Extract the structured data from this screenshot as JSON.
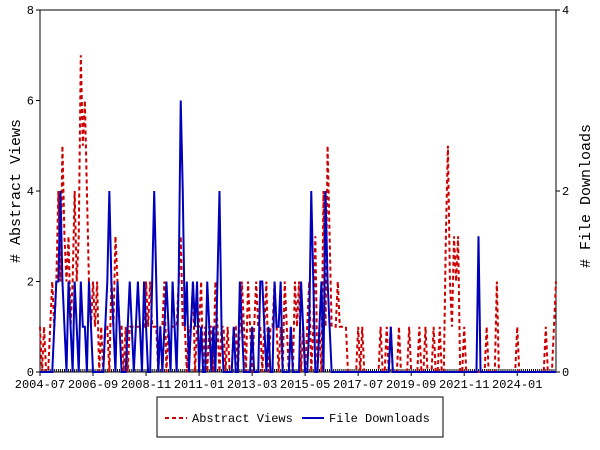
{
  "chart_data": {
    "type": "line",
    "y_label": "# Abstract Views",
    "y2_label": "# File Downloads",
    "x": [
      "2004-07",
      "2004-08",
      "2004-09",
      "2004-10",
      "2004-11",
      "2004-12",
      "2005-01",
      "2005-02",
      "2005-03",
      "2005-04",
      "2005-05",
      "2005-06",
      "2005-07",
      "2005-08",
      "2005-09",
      "2005-10",
      "2005-11",
      "2005-12",
      "2006-01",
      "2006-02",
      "2006-03",
      "2006-04",
      "2006-05",
      "2006-06",
      "2006-07",
      "2006-08",
      "2006-09",
      "2006-10",
      "2006-11",
      "2006-12",
      "2007-01",
      "2007-02",
      "2007-03",
      "2007-04",
      "2007-05",
      "2007-06",
      "2007-07",
      "2007-08",
      "2007-09",
      "2007-10",
      "2007-11",
      "2007-12",
      "2008-01",
      "2008-02",
      "2008-03",
      "2008-04",
      "2008-05",
      "2008-06",
      "2008-07",
      "2008-08",
      "2008-09",
      "2008-10",
      "2008-11",
      "2008-12",
      "2009-01",
      "2009-02",
      "2009-03",
      "2009-04",
      "2009-05",
      "2009-06",
      "2009-07",
      "2009-08",
      "2009-09",
      "2009-10",
      "2009-11",
      "2009-12",
      "2010-01",
      "2010-02",
      "2010-03",
      "2010-04",
      "2010-05",
      "2010-06",
      "2010-07",
      "2010-08",
      "2010-09",
      "2010-10",
      "2010-11",
      "2010-12",
      "2011-01",
      "2011-02",
      "2011-03",
      "2011-04",
      "2011-05",
      "2011-06",
      "2011-07",
      "2011-08",
      "2011-09",
      "2011-10",
      "2011-11",
      "2011-12",
      "2012-01",
      "2012-02",
      "2012-03",
      "2012-04",
      "2012-05",
      "2012-06",
      "2012-07",
      "2012-08",
      "2012-09",
      "2012-10",
      "2012-11",
      "2012-12",
      "2013-01",
      "2013-02",
      "2013-03",
      "2013-04",
      "2013-05",
      "2013-06",
      "2013-07",
      "2013-08",
      "2013-09",
      "2013-10",
      "2013-11",
      "2013-12",
      "2014-01",
      "2014-02",
      "2014-03",
      "2014-04",
      "2014-05",
      "2014-06",
      "2014-07",
      "2014-08",
      "2014-09",
      "2014-10",
      "2014-11",
      "2014-12",
      "2015-01",
      "2015-02",
      "2015-03",
      "2015-04",
      "2015-05",
      "2015-06",
      "2015-07",
      "2015-08",
      "2015-09",
      "2015-10",
      "2015-11",
      "2015-12",
      "2016-01",
      "2016-02",
      "2016-03",
      "2016-04",
      "2016-05",
      "2016-06",
      "2016-07",
      "2016-08",
      "2016-09",
      "2016-10",
      "2016-11",
      "2016-12",
      "2017-01",
      "2017-02",
      "2017-03",
      "2017-04",
      "2017-05",
      "2017-06",
      "2017-07",
      "2017-08",
      "2017-09",
      "2017-10",
      "2017-11",
      "2017-12",
      "2018-01",
      "2018-02",
      "2018-03",
      "2018-04",
      "2018-05",
      "2018-06",
      "2018-07",
      "2018-08",
      "2018-09",
      "2018-10",
      "2018-11",
      "2018-12",
      "2019-01",
      "2019-02",
      "2019-03",
      "2019-04",
      "2019-05",
      "2019-06",
      "2019-07",
      "2019-08",
      "2019-09",
      "2019-10",
      "2019-11",
      "2019-12",
      "2020-01",
      "2020-02",
      "2020-03",
      "2020-04",
      "2020-05",
      "2020-06",
      "2020-07",
      "2020-08",
      "2020-09",
      "2020-10",
      "2020-11",
      "2020-12",
      "2021-01",
      "2021-02",
      "2021-03",
      "2021-04",
      "2021-05",
      "2021-06",
      "2021-07",
      "2021-08",
      "2021-09",
      "2021-10",
      "2021-11",
      "2021-12",
      "2022-01",
      "2022-02",
      "2022-03",
      "2022-04",
      "2022-05",
      "2022-06",
      "2022-07",
      "2022-08",
      "2022-09",
      "2022-10",
      "2022-11",
      "2022-12",
      "2023-01",
      "2023-02",
      "2023-03",
      "2023-04",
      "2023-05",
      "2023-06",
      "2023-07",
      "2023-08",
      "2023-09",
      "2023-10",
      "2023-11",
      "2023-12",
      "2024-01",
      "2024-02",
      "2024-03",
      "2024-04",
      "2024-05",
      "2024-06",
      "2024-07",
      "2024-08",
      "2024-09",
      "2024-10",
      "2024-11",
      "2024-12",
      "2025-01",
      "2025-02",
      "2025-03",
      "2025-04",
      "2025-05",
      "2025-06",
      "2025-07",
      "2025-08"
    ],
    "xticks": [
      "2004-07",
      "2006-09",
      "2008-11",
      "2011-01",
      "2013-03",
      "2015-05",
      "2017-07",
      "2019-09",
      "2021-11",
      "2024-01"
    ],
    "ylim": [
      0,
      8
    ],
    "yticks": [
      0,
      2,
      4,
      6,
      8
    ],
    "y2lim": [
      0,
      4
    ],
    "y2ticks": [
      0,
      2,
      4
    ],
    "legend": "bottom",
    "series": [
      {
        "name": "Abstract Views",
        "color": "#cc0000",
        "style": "dashed",
        "values": [
          1,
          0,
          1,
          0,
          0,
          1,
          2,
          1,
          2,
          4,
          2,
          5,
          3,
          2,
          3,
          1,
          2,
          4,
          2,
          3,
          7,
          5,
          6,
          4,
          2,
          1,
          2,
          1,
          2,
          0,
          1,
          0,
          1,
          1,
          0,
          2,
          1,
          3,
          2,
          1,
          1,
          0,
          1,
          0,
          1,
          1,
          1,
          1,
          1,
          1,
          1,
          1,
          2,
          1,
          2,
          1,
          1,
          1,
          0,
          1,
          1,
          2,
          0,
          1,
          1,
          1,
          1,
          1,
          2,
          3,
          1,
          1,
          0,
          1,
          1,
          2,
          0,
          1,
          1,
          2,
          0,
          1,
          0,
          1,
          1,
          0,
          2,
          1,
          0,
          1,
          1,
          0,
          1,
          0,
          0,
          1,
          1,
          0,
          1,
          2,
          1,
          0,
          2,
          1,
          0,
          1,
          2,
          1,
          1,
          0,
          1,
          2,
          0,
          1,
          1,
          2,
          1,
          0,
          1,
          0,
          2,
          1,
          0,
          1,
          0,
          2,
          1,
          2,
          0,
          1,
          0,
          1,
          2,
          0,
          1,
          3,
          0,
          1,
          0,
          4,
          1,
          5,
          3,
          1,
          1,
          1,
          2,
          1,
          1,
          1,
          1,
          0,
          0,
          0,
          0,
          0,
          1,
          0,
          1,
          0,
          0,
          0,
          0,
          0,
          0,
          0,
          0,
          1,
          0,
          0,
          1,
          0,
          1,
          0,
          0,
          0,
          1,
          0,
          0,
          0,
          0,
          1,
          0,
          0,
          0,
          0,
          1,
          0,
          0,
          1,
          0,
          0,
          0,
          1,
          0,
          0,
          1,
          0,
          0,
          3,
          5,
          2,
          1,
          3,
          2,
          3,
          0,
          0,
          1,
          0,
          0,
          0,
          0,
          0,
          0,
          0,
          0,
          0,
          0,
          1,
          0,
          0,
          0,
          0,
          2,
          0,
          0,
          0,
          0,
          0,
          0,
          0,
          0,
          0,
          1,
          0,
          0,
          0,
          0,
          0,
          0,
          0,
          0,
          0,
          0,
          0,
          0,
          0,
          1,
          0,
          0,
          0,
          1,
          2
        ]
      },
      {
        "name": "File Downloads",
        "color": "#0000bb",
        "style": "solid",
        "axis": "y2",
        "values": [
          0,
          0,
          0,
          0,
          0,
          0,
          0,
          0.5,
          1,
          1,
          2,
          1,
          0.5,
          0,
          1,
          0.5,
          0,
          1,
          0.5,
          0,
          1,
          0.5,
          0.5,
          0,
          1,
          0.5,
          0,
          0,
          0,
          0,
          0,
          0,
          0.5,
          1,
          2,
          1,
          0.5,
          0,
          1,
          0.5,
          0,
          0,
          0,
          0.5,
          1,
          0.5,
          0,
          0.5,
          1,
          0.5,
          0,
          1,
          0.5,
          0,
          0,
          1,
          2,
          1,
          0,
          0.5,
          0,
          0.5,
          1,
          0.5,
          0,
          1,
          0.5,
          0,
          1,
          3,
          2,
          0.5,
          1,
          0,
          0.5,
          1,
          0.5,
          1,
          0,
          0.5,
          0,
          0,
          1,
          0.5,
          0,
          0.5,
          0,
          1,
          2,
          0.5,
          0,
          0,
          0,
          0,
          0,
          0.5,
          0,
          0,
          1,
          0.5,
          0,
          0,
          0,
          0,
          0.5,
          0,
          0,
          0,
          1,
          1,
          0.5,
          0,
          0.5,
          0,
          0,
          1,
          0.5,
          0.5,
          1,
          0,
          0,
          0,
          0,
          0.5,
          0,
          0,
          0,
          0,
          1,
          0.5,
          0,
          0,
          0.5,
          2,
          1,
          0,
          0,
          0.5,
          1,
          0,
          2,
          1,
          0.5,
          0,
          0,
          0,
          0,
          0,
          0,
          0,
          0,
          0,
          0,
          0,
          0,
          0,
          0,
          0,
          0,
          0,
          0,
          0,
          0,
          0,
          0,
          0,
          0,
          0,
          0,
          0,
          0,
          0,
          0.5,
          0,
          0,
          0,
          0,
          0,
          0,
          0,
          0,
          0,
          0,
          0,
          0,
          0,
          0,
          0,
          0,
          0,
          0,
          0,
          0,
          0,
          0,
          0,
          0,
          0,
          0,
          0,
          0,
          0,
          0,
          0,
          0,
          0,
          0,
          0,
          0,
          0,
          0,
          0,
          0,
          0,
          0,
          1.5,
          0,
          0,
          0,
          0,
          0,
          0,
          0,
          0,
          0,
          0,
          0,
          0,
          0,
          0,
          0,
          0,
          0,
          0,
          0,
          0,
          0,
          0,
          0,
          0,
          0,
          0,
          0,
          0,
          0,
          0,
          0,
          0,
          0,
          0,
          0,
          0,
          0,
          0
        ]
      }
    ]
  }
}
